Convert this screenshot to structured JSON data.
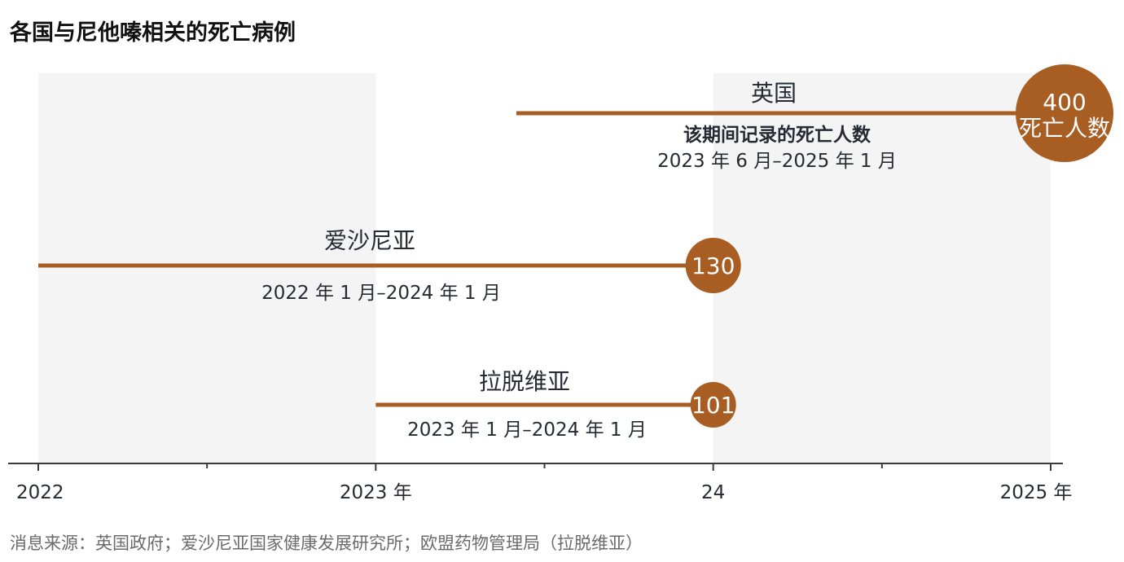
{
  "title": "各国与尼他嗪相关的死亡病例",
  "source": "消息来源：英国政府；爱沙尼亚国家健康发展研究所；欧盟药物管理局（拉脱维亚）",
  "colors": {
    "accent": "#a85d22",
    "shade": "#f3f4f3",
    "axis": "#3a3a3a",
    "text": "#262a33"
  },
  "chart_data": {
    "type": "timeline",
    "x_axis": {
      "min": "2022-01",
      "max": "2025-01",
      "tick_labels": [
        {
          "date": "2022-01",
          "label": "2022"
        },
        {
          "date": "2023-01",
          "label": "2023 年"
        },
        {
          "date": "2024-01",
          "label": "24"
        },
        {
          "date": "2025-01",
          "label": "2025 年"
        }
      ],
      "minor_ticks": [
        "2022-07",
        "2023-07",
        "2024-07"
      ]
    },
    "shaded_years": [
      {
        "start": "2022-01",
        "end": "2023-01"
      },
      {
        "start": "2024-01",
        "end": "2025-01"
      }
    ],
    "series": [
      {
        "name": "英国",
        "start": "2023-06",
        "end": "2025-01",
        "value": 400,
        "value_label": "400",
        "value_sublabel": "死亡人数",
        "note": "该期间记录的死亡人数",
        "period_label": "2023 年 6 月–2025 年 1 月"
      },
      {
        "name": "爱沙尼亚",
        "start": "2022-01",
        "end": "2024-01",
        "value": 130,
        "value_label": "130",
        "period_label": "2022 年 1 月–2024 年 1 月"
      },
      {
        "name": "拉脱维亚",
        "start": "2023-01",
        "end": "2024-01",
        "value": 101,
        "value_label": "101",
        "period_label": "2023 年 1 月–2024 年 1 月"
      }
    ]
  }
}
